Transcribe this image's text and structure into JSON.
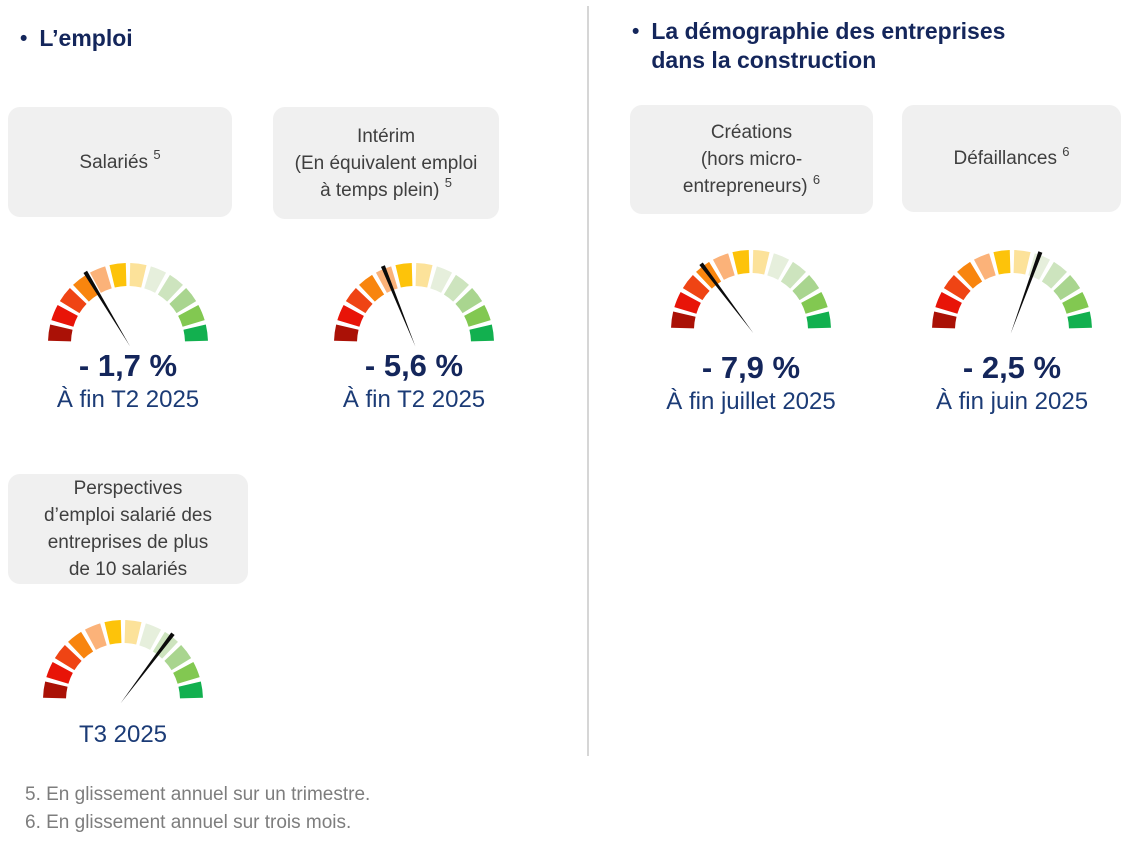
{
  "sections": {
    "emploi": {
      "bullet": "•",
      "title": "L’emploi",
      "cards": {
        "salaries": {
          "label": "Salariés",
          "sup": "5"
        },
        "interim": {
          "lines": [
            "Intérim",
            "(En équivalent emploi",
            "à temps plein)"
          ],
          "sup": "5"
        },
        "perspectives": {
          "lines": [
            "Perspectives",
            "d’emploi salarié des",
            "entreprises de plus",
            "de 10 salariés"
          ]
        }
      }
    },
    "demographie": {
      "bullet": "•",
      "title_line1": "La démographie des entreprises",
      "title_line2": "dans la construction",
      "cards": {
        "creations": {
          "lines": [
            "Créations",
            "(hors micro-",
            "entrepreneurs)"
          ],
          "sup": "6"
        },
        "defaillances": {
          "label": "Défaillances",
          "sup": "6"
        }
      }
    }
  },
  "footnotes": [
    "5. En glissement annuel sur un trimestre.",
    "6. En glissement annuel sur trois mois.",
    ""
  ],
  "colors": {
    "heading_navy": "#14265B",
    "value_navy": "#14265B",
    "period_blue": "#1B3B76",
    "card_bg": "#F0F0F0",
    "card_text": "#3F3F3F",
    "footnote_gray": "#7D7D7D",
    "divider_gray": "#D6D6D6",
    "needle_black": "#0B0B0B"
  },
  "chart_data": {
    "type": "gauge",
    "description": "Five semicircular dial gauges, 12 colored segments each, scale from dark red (left, negative/bad) to green (right, positive/good), black tapered needle.",
    "segment_colors": [
      "#AA1106",
      "#E81408",
      "#EF4414",
      "#F8850E",
      "#FBB279",
      "#FDC30A",
      "#FCE29A",
      "#E6EFDC",
      "#CDE4BE",
      "#A9D58F",
      "#82C851",
      "#12B04F"
    ],
    "gauges": [
      {
        "name": "salaries",
        "label": "Salariés 5",
        "value_pct": -1.7,
        "value_text": "- 1,7 %",
        "period": "À fin T2 2025",
        "needle_angle_deg": -31
      },
      {
        "name": "interim",
        "label": "Intérim (En équivalent emploi à temps plein) 5",
        "value_pct": -5.6,
        "value_text": "- 5,6 %",
        "period": "À fin T2 2025",
        "needle_angle_deg": -22
      },
      {
        "name": "perspectives",
        "label": "Perspectives d’emploi salarié des entreprises de plus de 10 salariés",
        "value_text": "",
        "period": "T3 2025",
        "needle_angle_deg": 37
      },
      {
        "name": "creations",
        "label": "Créations (hors micro-entrepreneurs) 6",
        "value_pct": -7.9,
        "value_text": "- 7,9 %",
        "period": "À fin juillet 2025",
        "needle_angle_deg": -37
      },
      {
        "name": "defaillances",
        "label": "Défaillances 6",
        "value_pct": -2.5,
        "value_text": "- 2,5 %",
        "period": "À fin juin 2025",
        "needle_angle_deg": 20
      }
    ]
  }
}
